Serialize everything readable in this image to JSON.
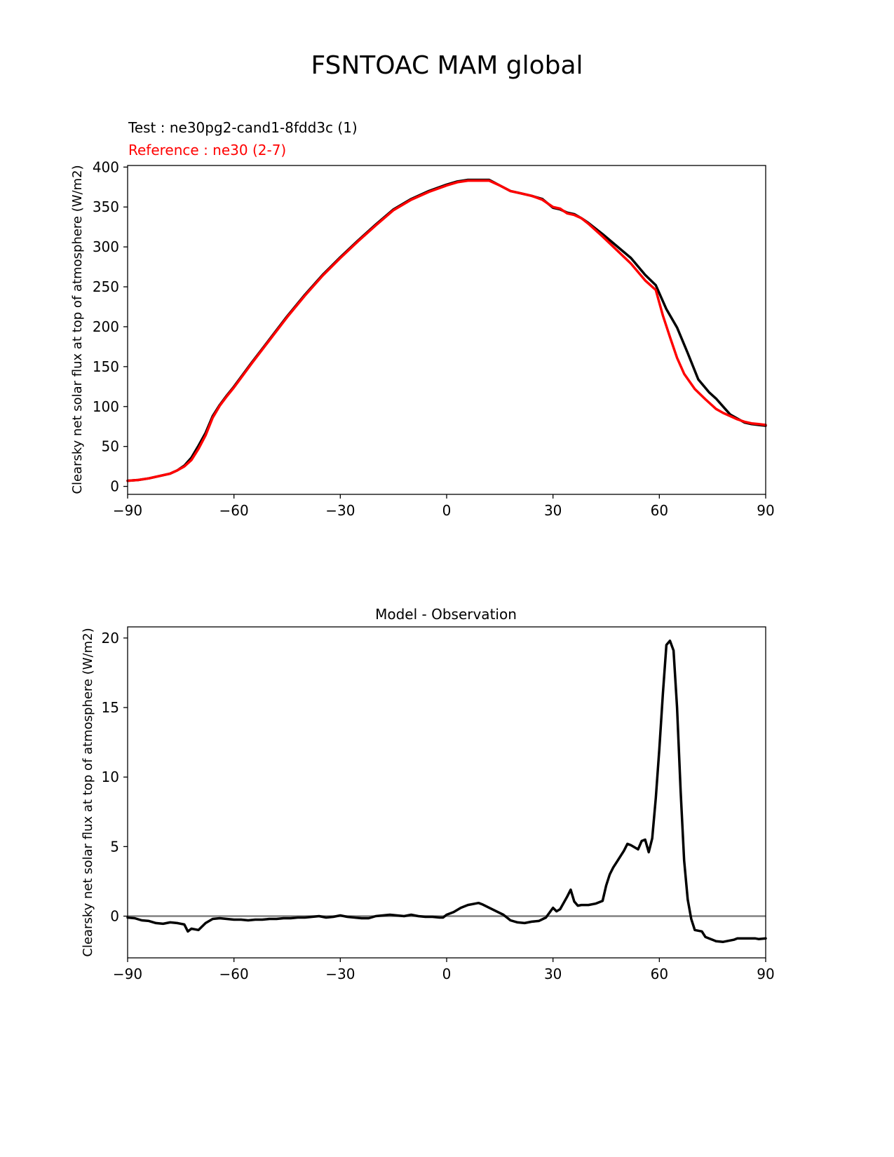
{
  "figure_title": "FSNTOAC MAM global",
  "chart_data": [
    {
      "type": "line",
      "test_label": "Test : ne30pg2-cand1-8fdd3c (1)",
      "reference_label": "Reference : ne30 (2-7)",
      "ylabel": "Clearsky net solar flux at top of atmosphere (W/m2)",
      "xlabel": "",
      "xlim": [
        -90,
        90
      ],
      "ylim": [
        -10,
        402
      ],
      "xticks": [
        -90,
        -60,
        -30,
        0,
        30,
        60,
        90
      ],
      "xtick_labels": [
        "−90",
        "−60",
        "−30",
        "0",
        "30",
        "60",
        "90"
      ],
      "yticks": [
        0,
        50,
        100,
        150,
        200,
        250,
        300,
        350,
        400
      ],
      "ytick_labels": [
        "0",
        "50",
        "100",
        "150",
        "200",
        "250",
        "300",
        "350",
        "400"
      ],
      "colors": {
        "test": "#000000",
        "reference": "#ff0000"
      },
      "series": [
        {
          "name": "Test",
          "x": [
            -90,
            -87,
            -84,
            -81,
            -78,
            -76,
            -74,
            -72,
            -70,
            -68,
            -66,
            -64,
            -62,
            -60,
            -55,
            -50,
            -45,
            -40,
            -35,
            -30,
            -25,
            -20,
            -15,
            -10,
            -5,
            0,
            3,
            6,
            9,
            12,
            15,
            18,
            21,
            24,
            27,
            30,
            32,
            34,
            36,
            38,
            40,
            44,
            48,
            52,
            56,
            59,
            62,
            65,
            68,
            71,
            74,
            76,
            78,
            80,
            82,
            84,
            86,
            88,
            90
          ],
          "values": [
            7,
            8,
            10,
            13,
            16,
            20,
            26,
            36,
            51,
            67,
            88,
            102,
            114,
            125,
            155,
            184,
            213,
            240,
            265,
            287,
            308,
            328,
            347,
            360,
            370,
            378,
            382,
            384,
            384,
            384,
            377,
            370,
            367,
            364,
            360,
            349,
            347,
            343,
            341,
            336,
            330,
            316,
            301,
            286,
            265,
            252,
            222,
            199,
            167,
            134,
            118,
            110,
            100,
            90,
            85,
            80,
            78,
            77,
            76
          ]
        },
        {
          "name": "Reference",
          "x": [
            -90,
            -87,
            -84,
            -81,
            -78,
            -76,
            -74,
            -72,
            -70,
            -68,
            -66,
            -64,
            -62,
            -60,
            -55,
            -50,
            -45,
            -40,
            -35,
            -30,
            -25,
            -20,
            -15,
            -10,
            -5,
            0,
            3,
            6,
            9,
            12,
            15,
            18,
            21,
            24,
            27,
            30,
            32,
            34,
            36,
            38,
            40,
            44,
            48,
            52,
            56,
            59,
            61,
            63,
            65,
            67,
            70,
            73,
            76,
            78,
            80,
            82,
            84,
            86,
            88,
            90
          ],
          "values": [
            7,
            8,
            10,
            13,
            16,
            20,
            25,
            33,
            47,
            64,
            86,
            101,
            113,
            124,
            154,
            183,
            212,
            239,
            264,
            286,
            307,
            327,
            346,
            359,
            369,
            377,
            381,
            383,
            383,
            383,
            377,
            370,
            367,
            364,
            359,
            350,
            348,
            342,
            340,
            336,
            329,
            313,
            296,
            279,
            258,
            246,
            214,
            187,
            161,
            141,
            122,
            109,
            97,
            92,
            88,
            84,
            81,
            79,
            78,
            77
          ]
        }
      ]
    },
    {
      "type": "line",
      "title": "Model - Observation",
      "ylabel": "Clearsky net solar flux at top of atmosphere (W/m2)",
      "xlabel": "",
      "xlim": [
        -90,
        90
      ],
      "ylim": [
        -3.0,
        20.8
      ],
      "xticks": [
        -90,
        -60,
        -30,
        0,
        30,
        60,
        90
      ],
      "xtick_labels": [
        "−90",
        "−60",
        "−30",
        "0",
        "30",
        "60",
        "90"
      ],
      "yticks": [
        0,
        5,
        10,
        15,
        20
      ],
      "ytick_labels": [
        "0",
        "5",
        "10",
        "15",
        "20"
      ],
      "zero_line": {
        "value": 0,
        "color": "#808080"
      },
      "series": [
        {
          "name": "Model - Observation",
          "color": "#000000",
          "x": [
            -90,
            -88,
            -86,
            -84,
            -82,
            -80,
            -78,
            -76,
            -74,
            -73,
            -72,
            -70,
            -68,
            -66,
            -64,
            -62,
            -60,
            -58,
            -56,
            -54,
            -52,
            -50,
            -48,
            -46,
            -44,
            -42,
            -40,
            -38,
            -36,
            -34,
            -32,
            -30,
            -28,
            -26,
            -24,
            -22,
            -20,
            -18,
            -16,
            -14,
            -12,
            -10,
            -8,
            -6,
            -4,
            -2,
            -1,
            0,
            2,
            4,
            6,
            8,
            9,
            10,
            12,
            14,
            16,
            18,
            20,
            22,
            24,
            26,
            28,
            30,
            31,
            32,
            34,
            35,
            36,
            37,
            38,
            40,
            42,
            44,
            45,
            46,
            47,
            48,
            50,
            51,
            52,
            54,
            55,
            56,
            57,
            58,
            59,
            60,
            61,
            62,
            63,
            64,
            65,
            66,
            67,
            68,
            69,
            70,
            71,
            72,
            73,
            74,
            75,
            76,
            78,
            80,
            81,
            82,
            84,
            86,
            87,
            88,
            90
          ],
          "values": [
            -0.1,
            -0.15,
            -0.3,
            -0.35,
            -0.5,
            -0.55,
            -0.45,
            -0.5,
            -0.6,
            -1.1,
            -0.9,
            -1.0,
            -0.5,
            -0.2,
            -0.15,
            -0.2,
            -0.25,
            -0.25,
            -0.3,
            -0.25,
            -0.25,
            -0.2,
            -0.2,
            -0.15,
            -0.15,
            -0.1,
            -0.1,
            -0.05,
            0.0,
            -0.1,
            -0.05,
            0.05,
            -0.05,
            -0.1,
            -0.15,
            -0.15,
            0.0,
            0.05,
            0.1,
            0.05,
            0.0,
            0.1,
            0.0,
            -0.05,
            -0.05,
            -0.1,
            -0.1,
            0.1,
            0.3,
            0.6,
            0.8,
            0.9,
            0.95,
            0.85,
            0.6,
            0.35,
            0.1,
            -0.3,
            -0.45,
            -0.5,
            -0.4,
            -0.35,
            -0.1,
            0.6,
            0.35,
            0.5,
            1.4,
            1.9,
            1.05,
            0.75,
            0.8,
            0.8,
            0.9,
            1.1,
            2.2,
            3.0,
            3.5,
            3.9,
            4.7,
            5.2,
            5.1,
            4.8,
            5.4,
            5.5,
            4.6,
            5.6,
            8.5,
            12.0,
            16.0,
            19.5,
            19.8,
            19.1,
            15.0,
            9.0,
            4.0,
            1.2,
            -0.2,
            -1.0,
            -1.05,
            -1.1,
            -1.5,
            -1.6,
            -1.7,
            -1.8,
            -1.85,
            -1.75,
            -1.7,
            -1.6,
            -1.6,
            -1.6,
            -1.6,
            -1.65,
            -1.6
          ]
        }
      ]
    }
  ]
}
